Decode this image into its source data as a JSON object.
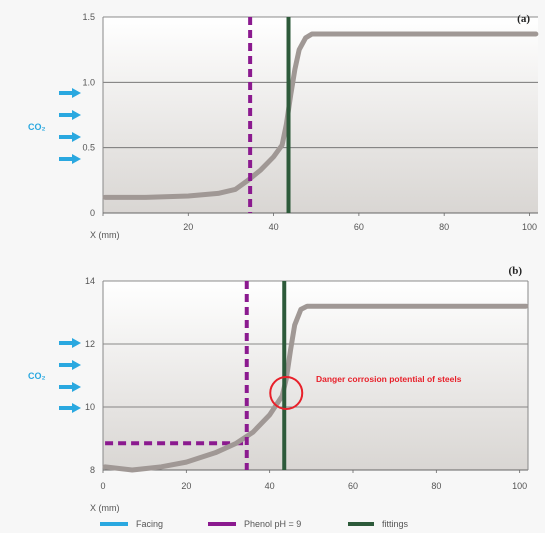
{
  "chart_data": [
    {
      "panel": "(a)",
      "type": "line",
      "xlabel": "X (mm)",
      "xlim": [
        0,
        102
      ],
      "ylim": [
        0,
        1.5
      ],
      "x_ticks": [
        0,
        20,
        40,
        60,
        80,
        100
      ],
      "x_tick_labels": [
        "",
        "20",
        "40",
        "60",
        "80",
        "100"
      ],
      "y_ticks": [
        0,
        0.5,
        1.0,
        1.5
      ],
      "y_tick_labels": [
        "0",
        "0.5",
        "1.0",
        "1.5"
      ],
      "grid": "horizontal",
      "series": [
        {
          "values": [
            [
              0.5,
              0.12
            ],
            [
              10,
              0.12
            ],
            [
              20,
              0.13
            ],
            [
              27,
              0.15
            ],
            [
              31,
              0.18
            ],
            [
              34,
              0.25
            ],
            [
              37,
              0.33
            ],
            [
              40,
              0.43
            ],
            [
              42,
              0.52
            ],
            [
              43,
              0.68
            ],
            [
              44,
              0.9
            ],
            [
              45,
              1.1
            ],
            [
              46,
              1.25
            ],
            [
              47.5,
              1.34
            ],
            [
              49,
              1.37
            ],
            [
              60,
              1.37
            ],
            [
              80,
              1.37
            ],
            [
              101.5,
              1.37
            ]
          ],
          "color": "#a09895"
        }
      ],
      "vertical_markers": [
        {
          "x": 34.5,
          "color": "#8b1a8f",
          "style": "dashed"
        },
        {
          "x": 43.5,
          "color": "#2d5a3a",
          "style": "solid"
        }
      ]
    },
    {
      "panel": "(b)",
      "type": "line",
      "xlabel": "X (mm)",
      "xlim": [
        0,
        102
      ],
      "ylim": [
        8,
        14
      ],
      "x_ticks": [
        0,
        20,
        40,
        60,
        80,
        100
      ],
      "x_tick_labels": [
        "0",
        "20",
        "40",
        "60",
        "80",
        "100"
      ],
      "y_ticks": [
        8,
        10,
        12,
        14
      ],
      "y_tick_labels": [
        "8",
        "10",
        "12",
        "14"
      ],
      "grid": "horizontal",
      "series": [
        {
          "values": [
            [
              0.5,
              8.1
            ],
            [
              7,
              8.0
            ],
            [
              14,
              8.1
            ],
            [
              20,
              8.25
            ],
            [
              27,
              8.55
            ],
            [
              32,
              8.85
            ],
            [
              36,
              9.2
            ],
            [
              40,
              9.75
            ],
            [
              42,
              10.15
            ],
            [
              43,
              10.35
            ],
            [
              44,
              10.9
            ],
            [
              45,
              11.8
            ],
            [
              46,
              12.6
            ],
            [
              47.5,
              13.1
            ],
            [
              49,
              13.2
            ],
            [
              60,
              13.2
            ],
            [
              80,
              13.2
            ],
            [
              101.5,
              13.2
            ]
          ],
          "color": "#a09895"
        }
      ],
      "vertical_markers": [
        {
          "x": 34.5,
          "color": "#8b1a8f",
          "style": "dashed"
        },
        {
          "x": 43.5,
          "color": "#2d5a3a",
          "style": "solid"
        }
      ],
      "horizontal_markers": [
        {
          "y": 8.85,
          "x_from": 0.5,
          "x_to": 34.5,
          "color": "#8b1a8f",
          "style": "dashed"
        }
      ],
      "annotation": {
        "text": "Danger corrosion potential of steels",
        "x": 43.5,
        "y": 10.35,
        "color": "#e8202a"
      }
    }
  ],
  "co2_label": "CO₂",
  "co2_color": "#2aa8e0",
  "legend": [
    {
      "label": "Facing",
      "color": "#2aa8e0"
    },
    {
      "label": "Phenol pH = 9",
      "color": "#8b1a8f"
    },
    {
      "label": "fittings",
      "color": "#2d5a3a"
    }
  ]
}
